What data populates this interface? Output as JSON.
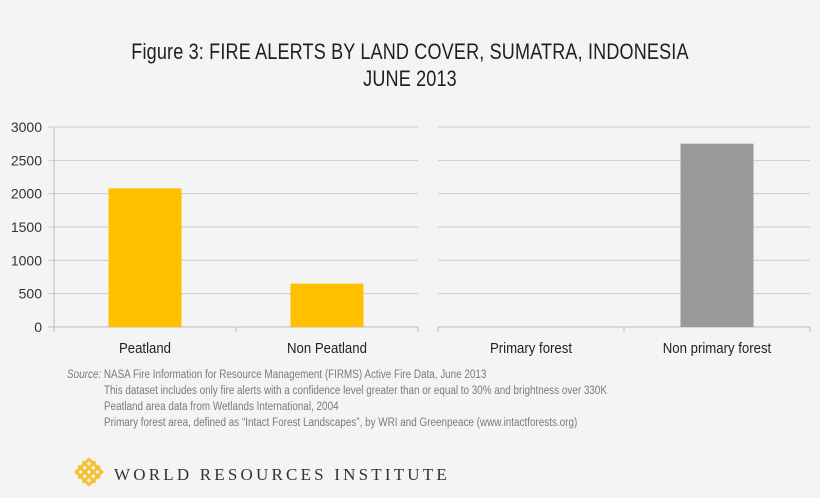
{
  "title": {
    "line1": "Figure 3: FIRE ALERTS BY LAND COVER, SUMATRA, INDONESIA",
    "line2": "JUNE 2013"
  },
  "colors": {
    "background": "#f4f4f4",
    "peat_bar": "#ffc000",
    "forest_bar": "#999999",
    "gridline": "#cccccc"
  },
  "chart_data": [
    {
      "type": "bar",
      "title": "Figure 3: FIRE ALERTS BY LAND COVER, SUMATRA, INDONESIA JUNE 2013",
      "categories": [
        "Peatland",
        "Non Peatland"
      ],
      "values": [
        2080,
        650
      ],
      "color": "#ffc000",
      "xlabel": "",
      "ylabel": "",
      "ylim": [
        0,
        3000
      ],
      "yticks": [
        "0",
        "500",
        "1000",
        "1500",
        "2000",
        "2500",
        "3000"
      ],
      "grid": true
    },
    {
      "type": "bar",
      "categories": [
        "Primary forest",
        "Non primary forest"
      ],
      "values": [
        0,
        2750
      ],
      "color": "#999999",
      "xlabel": "",
      "ylabel": "",
      "ylim": [
        0,
        3000
      ],
      "grid": true,
      "shared_y_axis": true
    }
  ],
  "notes": {
    "source_label": "Source:",
    "lines": [
      "NASA Fire Information for Resource Management (FIRMS) Active Fire Data, June 2013",
      "This dataset includes only fire alerts with a confidence level greater than or equal to 30%  and brightness over 330K",
      "Peatland area data from Wetlands International, 2004",
      "Primary forest area, defined as “Intact Forest Landscapes”, by WRI and Greenpeace (www.intactforests.org)"
    ]
  },
  "footer": {
    "logo_icon": "wri-knot-icon",
    "org_name": "WORLD RESOURCES INSTITUTE"
  }
}
